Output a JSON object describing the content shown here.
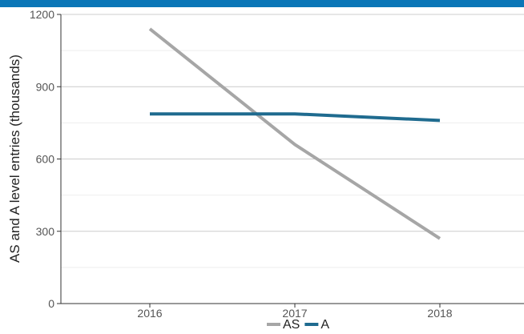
{
  "chart_data": {
    "type": "line",
    "title": "",
    "xlabel": "",
    "ylabel": "AS and A level entries (thousands)",
    "x": [
      "2016",
      "2017",
      "2018"
    ],
    "ylim": [
      0,
      1200
    ],
    "yticks": [
      0,
      300,
      600,
      900,
      1200
    ],
    "grid": true,
    "legend_position": "bottom",
    "series": [
      {
        "name": "AS",
        "values": [
          1140,
          660,
          270
        ],
        "color": "#a6a6a6"
      },
      {
        "name": "A",
        "values": [
          787,
          787,
          760
        ],
        "color": "#1f6b8f"
      }
    ]
  },
  "colors": {
    "top_band": "#0b76b7",
    "grid_major": "#cccccc",
    "grid_minor": "#eeeeee"
  }
}
